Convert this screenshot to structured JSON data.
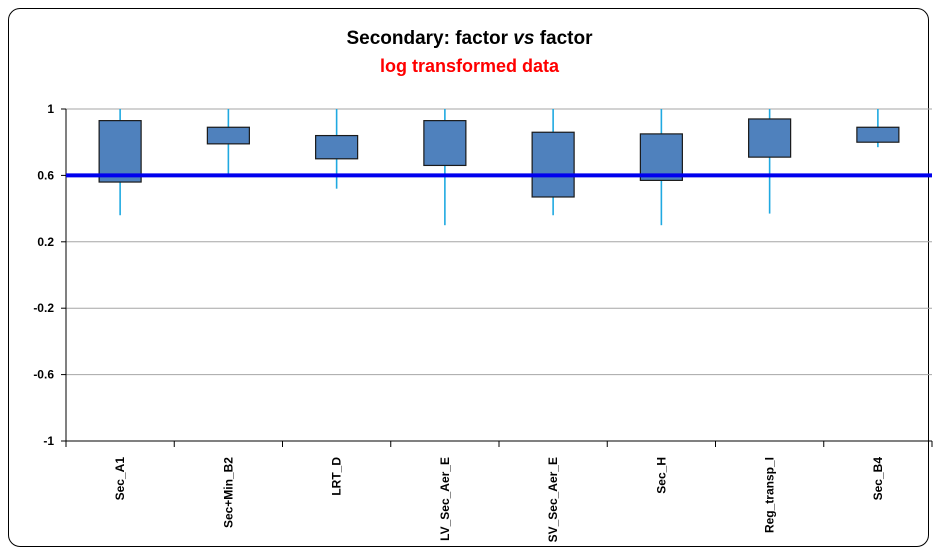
{
  "chart_data": {
    "type": "box",
    "title": "Secondary: factor ",
    "title_italic": "vs",
    "title_end": " factor",
    "subtitle": "log transformed data",
    "ylim": [
      -1,
      1
    ],
    "yticks": [
      "1",
      "0.6",
      "0.2",
      "-0.2",
      "-0.6",
      "-1"
    ],
    "ytick_values": [
      1,
      0.6,
      0.2,
      -0.2,
      -0.6,
      -1
    ],
    "reference_line": 0.6,
    "categories": [
      "Sec_A1",
      "Sec+Min_B2",
      "LRT_D",
      "LV_Sec_Aer_E",
      "SV_Sec_Aer_E",
      "Sec_H",
      "Reg_transp_I",
      "Sec_B4"
    ],
    "boxes": [
      {
        "min": 0.36,
        "q1": 0.56,
        "q3": 0.93,
        "max": 1.0
      },
      {
        "min": 0.59,
        "q1": 0.79,
        "q3": 0.89,
        "max": 1.0
      },
      {
        "min": 0.52,
        "q1": 0.7,
        "q3": 0.84,
        "max": 1.0
      },
      {
        "min": 0.3,
        "q1": 0.66,
        "q3": 0.93,
        "max": 1.0
      },
      {
        "min": 0.36,
        "q1": 0.47,
        "q3": 0.86,
        "max": 1.0
      },
      {
        "min": 0.3,
        "q1": 0.57,
        "q3": 0.85,
        "max": 1.0
      },
      {
        "min": 0.37,
        "q1": 0.71,
        "q3": 0.94,
        "max": 1.0
      },
      {
        "min": 0.77,
        "q1": 0.8,
        "q3": 0.89,
        "max": 1.0
      }
    ],
    "colors": {
      "box": "#4f81bd",
      "whisker": "#1fa9e1",
      "reference": "#0000ee",
      "grid": "#a6a6a6"
    },
    "grid": true
  }
}
